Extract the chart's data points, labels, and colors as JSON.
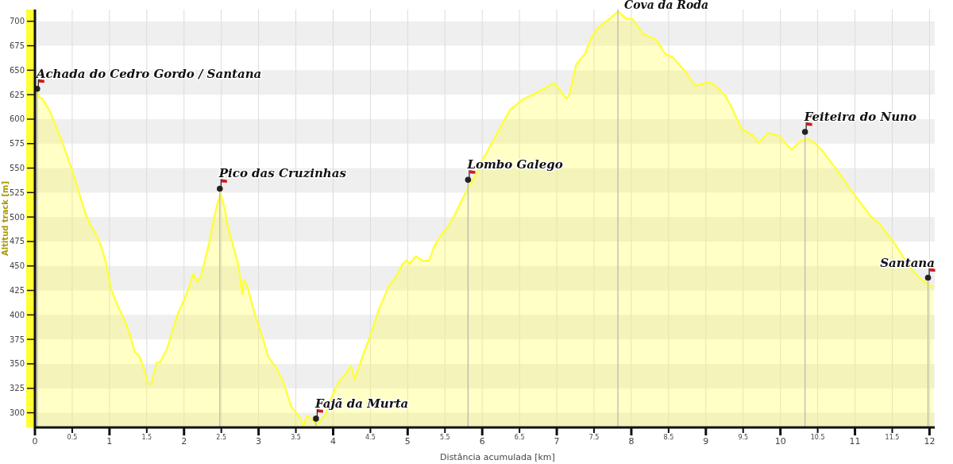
{
  "chart_data": {
    "type": "area",
    "xlabel": "Distância acumulada [km]",
    "ylabel": "Altitud track [m]",
    "xlim": [
      0,
      12.07
    ],
    "ylim": [
      285,
      712
    ],
    "xticks": [
      0,
      0.5,
      1,
      1.5,
      2,
      2.5,
      3,
      3.5,
      4,
      4.5,
      5,
      5.5,
      6,
      6.5,
      7,
      7.5,
      8,
      8.5,
      9,
      9.5,
      10,
      10.5,
      11,
      11.5,
      12
    ],
    "yticks": [
      300,
      325,
      350,
      375,
      400,
      425,
      450,
      475,
      500,
      525,
      550,
      575,
      600,
      625,
      650,
      675,
      700
    ],
    "grid": true,
    "series": [
      {
        "color": "#ffff33",
        "x": [
          0,
          0.03,
          0.06,
          0.1,
          0.2,
          0.38,
          0.52,
          0.67,
          0.75,
          0.81,
          0.88,
          0.95,
          1.02,
          1.1,
          1.2,
          1.27,
          1.34,
          1.4,
          1.47,
          1.52,
          1.56,
          1.63,
          1.68,
          1.77,
          1.91,
          2.02,
          2.07,
          2.12,
          2.18,
          2.23,
          2.28,
          2.34,
          2.39,
          2.44,
          2.49,
          2.54,
          2.59,
          2.66,
          2.73,
          2.78,
          2.8,
          2.85,
          2.94,
          3.05,
          3.13,
          3.23,
          3.33,
          3.44,
          3.55,
          3.6,
          3.65,
          3.79,
          3.9,
          4.01,
          4.08,
          4.15,
          4.24,
          4.29,
          4.4,
          4.51,
          4.61,
          4.75,
          4.84,
          4.93,
          4.99,
          5.02,
          5.11,
          5.21,
          5.29,
          5.36,
          5.47,
          5.53,
          5.63,
          5.71,
          5.82,
          5.93,
          6.0,
          6.14,
          6.28,
          6.38,
          6.54,
          6.7,
          6.85,
          6.96,
          7.04,
          7.13,
          7.17,
          7.26,
          7.38,
          7.45,
          7.56,
          7.7,
          7.82,
          7.93,
          8.02,
          8.16,
          8.34,
          8.45,
          8.56,
          8.73,
          8.86,
          9.05,
          9.16,
          9.26,
          9.34,
          9.48,
          9.62,
          9.71,
          9.83,
          9.98,
          10.15,
          10.26,
          10.37,
          10.47,
          10.58,
          10.75,
          11.01,
          11.22,
          11.33,
          11.54,
          11.61,
          11.71,
          11.86,
          12.05
        ],
        "values": [
          630,
          628,
          622,
          621,
          608,
          574,
          543,
          505,
          491,
          484,
          472,
          454,
          427,
          411,
          395,
          381,
          362,
          358,
          343,
          330,
          329,
          351,
          352,
          365,
          400,
          419,
          429,
          442,
          434,
          440,
          456,
          475,
          494,
          512,
          524,
          510,
          490,
          470,
          451,
          421,
          436,
          429,
          403,
          378,
          357,
          347,
          332,
          306,
          296,
          286,
          297,
          288,
          299,
          322,
          332,
          338,
          348,
          334,
          359,
          381,
          405,
          430,
          438,
          452,
          456,
          452,
          460,
          455,
          456,
          471,
          484,
          489,
          502,
          515,
          531,
          545,
          558,
          577,
          597,
          610,
          620,
          626,
          632,
          637,
          630,
          621,
          625,
          656,
          667,
          681,
          694,
          702,
          710,
          703,
          702,
          687,
          681,
          667,
          663,
          648,
          634,
          638,
          632,
          624,
          613,
          590,
          584,
          576,
          586,
          583,
          569,
          577,
          580,
          575,
          566,
          549,
          521,
          500,
          493,
          472,
          464,
          451,
          438,
          428
        ]
      },
      {
        "type": "lollipop",
        "color": "#222222",
        "marker": "circle",
        "x": [
          0.03,
          2.48,
          3.77,
          5.81,
          10.33,
          11.98
        ],
        "values": [
          631,
          529,
          294,
          538,
          587,
          438
        ]
      }
    ],
    "ref_lines": [
      {
        "axis": "x",
        "value": 7.82,
        "label": "Cova da Roda",
        "color": "#b4b4b4"
      }
    ],
    "annotations": [
      {
        "text": "Achada do Cedro Gordo / Santana",
        "x": 0.03,
        "y": 631
      },
      {
        "text": "Pico das Cruzinhas",
        "x": 2.48,
        "y": 529
      },
      {
        "text": "Fajã da Murta",
        "x": 3.77,
        "y": 294
      },
      {
        "text": "Lombo Galego",
        "x": 5.81,
        "y": 538
      },
      {
        "text": "Feiteira do Nuno",
        "x": 10.33,
        "y": 587
      },
      {
        "text": "Santana",
        "x": 11.98,
        "y": 438
      }
    ]
  }
}
